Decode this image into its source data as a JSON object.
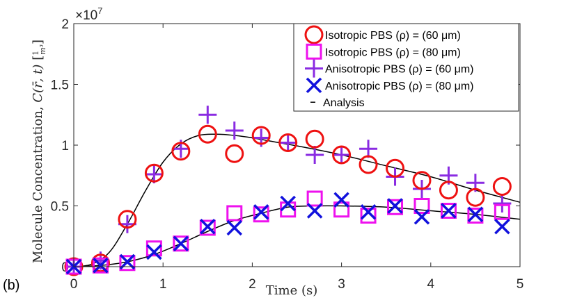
{
  "panel_label": "(b)",
  "chart_data": {
    "type": "scatter",
    "title": "",
    "xlabel": "Time (s)",
    "ylabel": "Molecule Concentration, C(r̄, t) [1/m³]",
    "ylabel_parts": {
      "main": "Molecule Concentration, ",
      "func": "C(r̄, t)",
      "unit_num": "1",
      "unit_den": "m³"
    },
    "y_multiplier": "×10",
    "y_multiplier_exp": "7",
    "xlim": [
      0,
      5
    ],
    "ylim": [
      0,
      2
    ],
    "xticks": [
      0,
      1,
      2,
      3,
      4,
      5
    ],
    "yticks": [
      0,
      0.5,
      1,
      1.5,
      2
    ],
    "xtick_labels": [
      "0",
      "1",
      "2",
      "3",
      "4",
      "5"
    ],
    "ytick_labels": [
      "0",
      "0.5",
      "1",
      "1.5",
      "2"
    ],
    "legend_position": "top-right",
    "series": [
      {
        "name": "Isotropic PBS (ρ) = (60 μm)",
        "marker": "circle",
        "color": "#ee1111",
        "x": [
          0,
          0.3,
          0.6,
          0.9,
          1.2,
          1.5,
          1.8,
          2.1,
          2.4,
          2.7,
          3.0,
          3.3,
          3.6,
          3.9,
          4.2,
          4.5,
          4.8
        ],
        "y": [
          0.0,
          0.03,
          0.39,
          0.77,
          0.95,
          1.09,
          0.93,
          1.08,
          1.02,
          1.05,
          0.92,
          0.84,
          0.81,
          0.71,
          0.63,
          0.57,
          0.66
        ]
      },
      {
        "name": "Isotropic PBS (ρ) = (80 μm)",
        "marker": "square",
        "color": "#ee11ee",
        "x": [
          0,
          0.3,
          0.6,
          0.9,
          1.2,
          1.5,
          1.8,
          2.1,
          2.4,
          2.7,
          3.0,
          3.3,
          3.6,
          3.9,
          4.2,
          4.5,
          4.8
        ],
        "y": [
          0.0,
          0.01,
          0.03,
          0.15,
          0.19,
          0.32,
          0.44,
          0.43,
          0.47,
          0.56,
          0.47,
          0.42,
          0.49,
          0.5,
          0.46,
          0.42,
          0.45
        ]
      },
      {
        "name": "Anisotropic PBS (ρ) = (60 μm)",
        "marker": "plus",
        "color": "#8a2be2",
        "x": [
          0,
          0.3,
          0.6,
          0.9,
          1.2,
          1.5,
          1.8,
          2.1,
          2.4,
          2.7,
          3.0,
          3.3,
          3.6,
          3.9,
          4.2,
          4.5,
          4.8
        ],
        "y": [
          0.0,
          0.05,
          0.35,
          0.76,
          0.97,
          1.25,
          1.12,
          1.06,
          1.02,
          0.92,
          0.92,
          0.97,
          0.74,
          0.64,
          0.75,
          0.69,
          0.52
        ]
      },
      {
        "name": "Anisotropic PBS (ρ) = (80 μm)",
        "marker": "x",
        "color": "#1111dd",
        "x": [
          0,
          0.3,
          0.6,
          0.9,
          1.2,
          1.5,
          1.8,
          2.1,
          2.4,
          2.7,
          3.0,
          3.3,
          3.6,
          3.9,
          4.2,
          4.5,
          4.8
        ],
        "y": [
          0.0,
          0.01,
          0.04,
          0.12,
          0.19,
          0.33,
          0.32,
          0.45,
          0.52,
          0.46,
          0.55,
          0.45,
          0.5,
          0.41,
          0.46,
          0.43,
          0.33
        ]
      },
      {
        "name": "Analysis",
        "marker": "line",
        "color": "#000000",
        "x": [
          0,
          0.2,
          0.4,
          0.6,
          0.8,
          1.0,
          1.2,
          1.4,
          1.6,
          1.8,
          2.0,
          2.3,
          2.6,
          3.0,
          3.5,
          4.0,
          4.5,
          5.0
        ],
        "y": [
          0.0,
          0.02,
          0.12,
          0.35,
          0.62,
          0.86,
          1.01,
          1.08,
          1.09,
          1.08,
          1.06,
          1.02,
          0.98,
          0.92,
          0.83,
          0.74,
          0.63,
          0.53
        ]
      },
      {
        "name": "Analysis (80 μm)",
        "marker": "line",
        "color": "#000000",
        "in_legend": false,
        "x": [
          0,
          0.3,
          0.6,
          0.9,
          1.2,
          1.5,
          1.8,
          2.1,
          2.4,
          2.7,
          3.0,
          3.5,
          4.0,
          4.5,
          5.0
        ],
        "y": [
          0.0,
          0.01,
          0.04,
          0.1,
          0.19,
          0.29,
          0.38,
          0.44,
          0.49,
          0.5,
          0.5,
          0.49,
          0.46,
          0.43,
          0.39
        ]
      }
    ]
  }
}
